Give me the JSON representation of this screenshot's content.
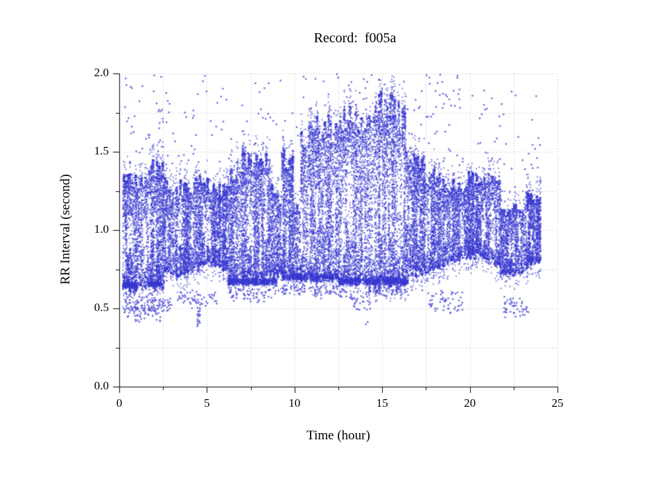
{
  "chart_data": {
    "type": "scatter",
    "title": "Record:  f005a",
    "record_id": "f005a",
    "xlabel": "Time (hour)",
    "ylabel": "RR Interval (second)",
    "xlim": [
      0,
      25
    ],
    "ylim": [
      0.0,
      2.0
    ],
    "x_major_ticks": [
      0,
      5,
      10,
      15,
      20,
      25
    ],
    "x_major_labels": [
      "0",
      "5",
      "10",
      "15",
      "20",
      "25"
    ],
    "x_minor_ticks": [
      2.5,
      7.5,
      12.5,
      17.5,
      22.5
    ],
    "y_major_ticks": [
      0.0,
      0.5,
      1.0,
      1.5,
      2.0
    ],
    "y_major_labels": [
      "0.0",
      "0.5",
      "1.0",
      "1.5",
      "2.0"
    ],
    "y_minor_ticks": [
      0.25,
      0.75,
      1.25,
      1.75
    ],
    "grid": {
      "style": "dotted",
      "on_major": true,
      "on_minor": true
    },
    "legend": null,
    "point_color": "#3737d0",
    "outlier_point_color": "#5353da",
    "grid_color": "#b6b6b6",
    "axis_color": "#000000",
    "data_time_range_hours": [
      0.2,
      24.05
    ],
    "seed": 1337,
    "band_segments": [
      [
        0.2,
        1.05,
        0.62,
        0.63,
        1.3,
        1.32,
        0.95
      ],
      [
        1.05,
        1.65,
        0.64,
        0.64,
        1.36,
        1.34,
        0.8
      ],
      [
        1.65,
        2.55,
        0.63,
        0.66,
        1.4,
        1.36,
        0.9
      ],
      [
        2.55,
        3.25,
        0.72,
        0.73,
        1.3,
        1.26,
        0.75
      ],
      [
        3.25,
        4.25,
        0.72,
        0.74,
        1.26,
        1.27,
        0.85
      ],
      [
        4.25,
        5.3,
        0.76,
        0.78,
        1.34,
        1.28,
        0.8
      ],
      [
        5.3,
        6.2,
        0.78,
        0.76,
        1.26,
        1.25,
        0.85
      ],
      [
        6.2,
        6.7,
        0.65,
        0.67,
        1.3,
        1.36,
        0.9
      ],
      [
        6.7,
        8.6,
        0.68,
        0.7,
        1.45,
        1.42,
        0.9
      ],
      [
        8.6,
        9.25,
        0.71,
        0.72,
        1.25,
        1.18,
        0.6
      ],
      [
        9.25,
        9.95,
        0.73,
        0.74,
        1.44,
        1.43,
        0.95
      ],
      [
        9.95,
        10.35,
        0.7,
        0.71,
        1.12,
        1.15,
        0.55
      ],
      [
        10.35,
        11.4,
        0.72,
        0.71,
        1.55,
        1.66,
        0.9
      ],
      [
        11.4,
        12.3,
        0.7,
        0.7,
        1.63,
        1.66,
        0.85
      ],
      [
        12.3,
        13.35,
        0.7,
        0.69,
        1.7,
        1.68,
        0.9
      ],
      [
        13.35,
        14.1,
        0.68,
        0.67,
        1.66,
        1.7,
        0.85
      ],
      [
        14.1,
        15.25,
        0.65,
        0.65,
        1.8,
        1.78,
        0.95
      ],
      [
        15.25,
        16.35,
        0.65,
        0.66,
        1.76,
        1.7,
        0.9
      ],
      [
        16.35,
        17.4,
        0.74,
        0.73,
        1.46,
        1.4,
        0.85
      ],
      [
        17.4,
        18.3,
        0.72,
        0.76,
        1.36,
        1.33,
        0.85
      ],
      [
        18.3,
        19.3,
        0.78,
        0.8,
        1.3,
        1.27,
        0.7
      ],
      [
        19.3,
        19.9,
        0.82,
        0.83,
        1.25,
        1.26,
        0.65
      ],
      [
        19.9,
        21.0,
        0.84,
        0.83,
        1.33,
        1.31,
        0.85
      ],
      [
        21.0,
        21.75,
        0.8,
        0.79,
        1.37,
        1.33,
        0.85
      ],
      [
        21.75,
        22.4,
        0.72,
        0.72,
        1.12,
        1.1,
        0.7
      ],
      [
        22.4,
        23.1,
        0.72,
        0.74,
        1.17,
        1.15,
        0.75
      ],
      [
        23.1,
        24.05,
        0.77,
        0.8,
        1.21,
        1.2,
        0.9
      ]
    ],
    "floor_bands": [
      [
        0.2,
        1.05,
        0.645,
        0.022,
        0.9
      ],
      [
        1.65,
        2.4,
        0.655,
        0.02,
        0.7
      ],
      [
        6.2,
        9.0,
        0.67,
        0.028,
        0.9
      ],
      [
        9.3,
        12.5,
        0.7,
        0.03,
        0.8
      ],
      [
        12.5,
        16.5,
        0.675,
        0.03,
        0.9
      ]
    ],
    "low_outlier_clusters": [
      [
        0.25,
        2.35,
        0.4,
        0.6,
        130
      ],
      [
        2.4,
        3.1,
        0.46,
        0.58,
        22
      ],
      [
        3.3,
        5.6,
        0.5,
        0.63,
        55
      ],
      [
        4.45,
        4.62,
        0.37,
        0.55,
        22
      ],
      [
        6.3,
        9.0,
        0.53,
        0.65,
        60
      ],
      [
        9.3,
        10.6,
        0.58,
        0.67,
        35
      ],
      [
        11.0,
        13.0,
        0.56,
        0.66,
        45
      ],
      [
        13.2,
        14.35,
        0.47,
        0.62,
        30
      ],
      [
        14.5,
        16.5,
        0.56,
        0.66,
        40
      ],
      [
        17.6,
        19.6,
        0.45,
        0.64,
        55
      ],
      [
        21.9,
        23.4,
        0.43,
        0.58,
        48
      ],
      [
        14.05,
        14.2,
        0.39,
        0.42,
        2
      ]
    ],
    "high_outlier_clusters": [
      [
        0.3,
        2.6,
        1.42,
        2.0,
        40
      ],
      [
        2.6,
        6.5,
        1.35,
        2.0,
        45
      ],
      [
        6.5,
        10.3,
        1.5,
        1.98,
        22
      ],
      [
        10.3,
        16.4,
        1.82,
        2.0,
        22
      ],
      [
        16.4,
        19.8,
        1.42,
        2.0,
        40
      ],
      [
        17.5,
        19.5,
        1.78,
        2.0,
        16
      ],
      [
        19.8,
        24.0,
        1.38,
        1.97,
        38
      ]
    ]
  }
}
